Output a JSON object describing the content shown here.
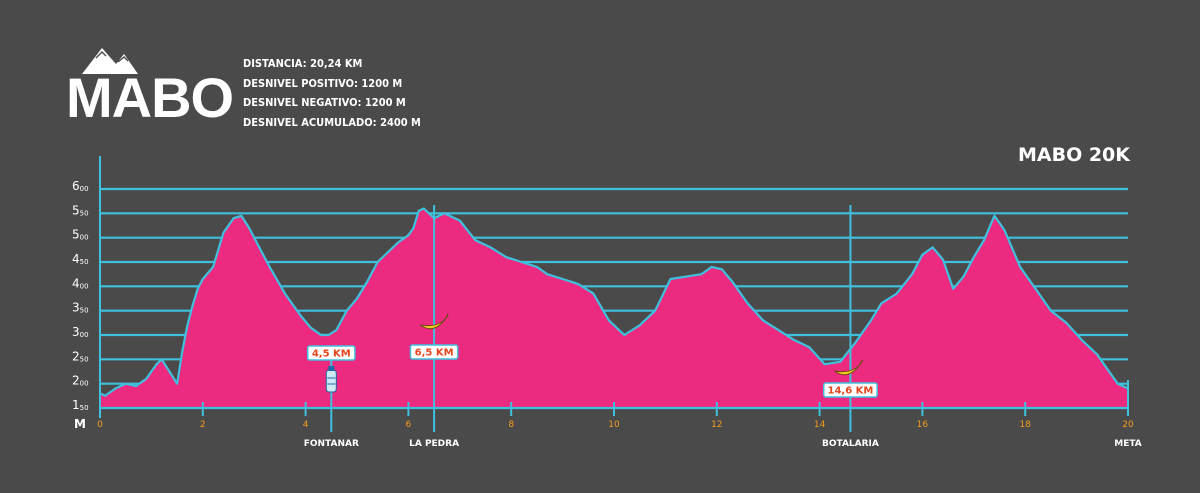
{
  "brand": {
    "name": "MABO"
  },
  "stats": {
    "distance": "DISTANCIA: 20,24 KM",
    "gain": "DESNIVEL POSITIVO: 1200 M",
    "loss": "DESNIVEL NEGATIVO: 1200 M",
    "total": "DESNIVEL ACUMULADO: 2400 M"
  },
  "colors": {
    "background": "#4a4a4a",
    "area_fill": "#ec2a80",
    "line": "#3fc0dc",
    "axis_x_labels": "#f39c1f",
    "km_label": "#e8441b",
    "banana": "#f5d020"
  },
  "chart_data": {
    "type": "area",
    "title": "MABO 20K",
    "ylabel": "M",
    "xlim": [
      0,
      20
    ],
    "ylim": [
      150,
      600
    ],
    "grid": true,
    "x_ticks": [
      "0",
      "2",
      "4",
      "6",
      "8",
      "10",
      "12",
      "14",
      "16",
      "18",
      "20"
    ],
    "y_ticks": [
      "150",
      "200",
      "250",
      "300",
      "350",
      "400",
      "450",
      "500",
      "550",
      "600"
    ],
    "series": [
      {
        "x": [
          0,
          0.1,
          0.3,
          0.5,
          0.7,
          0.9,
          1.1,
          1.2,
          1.35,
          1.5,
          1.6,
          1.7,
          1.8,
          1.9,
          2.0,
          2.2,
          2.4,
          2.6,
          2.75,
          2.9,
          3.1,
          3.3,
          3.6,
          3.9,
          4.1,
          4.3,
          4.45,
          4.6,
          4.8,
          5.0,
          5.2,
          5.4,
          5.6,
          5.8,
          6.0,
          6.1,
          6.2,
          6.3,
          6.5,
          6.7,
          7.0,
          7.3,
          7.6,
          7.9,
          8.2,
          8.5,
          8.7,
          9.0,
          9.3,
          9.6,
          9.9,
          10.2,
          10.5,
          10.8,
          11.1,
          11.4,
          11.7,
          11.9,
          12.1,
          12.3,
          12.6,
          12.9,
          13.2,
          13.5,
          13.8,
          14.1,
          14.4,
          14.7,
          15.0,
          15.2,
          15.5,
          15.8,
          16.0,
          16.2,
          16.4,
          16.6,
          16.8,
          17.0,
          17.2,
          17.4,
          17.6,
          17.9,
          18.2,
          18.5,
          18.8,
          19.1,
          19.4,
          19.6,
          19.8,
          19.9,
          20.0
        ],
        "y": [
          180,
          175,
          190,
          200,
          195,
          210,
          240,
          250,
          225,
          200,
          265,
          320,
          360,
          395,
          415,
          440,
          510,
          540,
          545,
          520,
          480,
          440,
          385,
          340,
          315,
          300,
          300,
          310,
          350,
          375,
          410,
          450,
          470,
          490,
          505,
          520,
          555,
          560,
          540,
          550,
          535,
          495,
          480,
          460,
          450,
          440,
          425,
          415,
          405,
          385,
          330,
          300,
          320,
          350,
          415,
          420,
          425,
          440,
          435,
          410,
          365,
          330,
          310,
          290,
          275,
          240,
          245,
          285,
          330,
          365,
          385,
          425,
          465,
          480,
          455,
          395,
          420,
          460,
          495,
          545,
          515,
          440,
          395,
          350,
          325,
          290,
          260,
          230,
          200,
          195,
          190
        ]
      }
    ],
    "markers": [
      {
        "x": 4.5,
        "label": "4,5 KM",
        "place": "FONTANAR",
        "icon": "water-bottle-icon"
      },
      {
        "x": 6.5,
        "label": "6,5 KM",
        "place": "LA PEDRA",
        "icon": "banana-icon"
      },
      {
        "x": 14.6,
        "label": "14,6 KM",
        "place": "BOTALARIA",
        "icon": "banana-icon"
      },
      {
        "x": 20,
        "label": "",
        "place": "META",
        "icon": ""
      }
    ]
  }
}
